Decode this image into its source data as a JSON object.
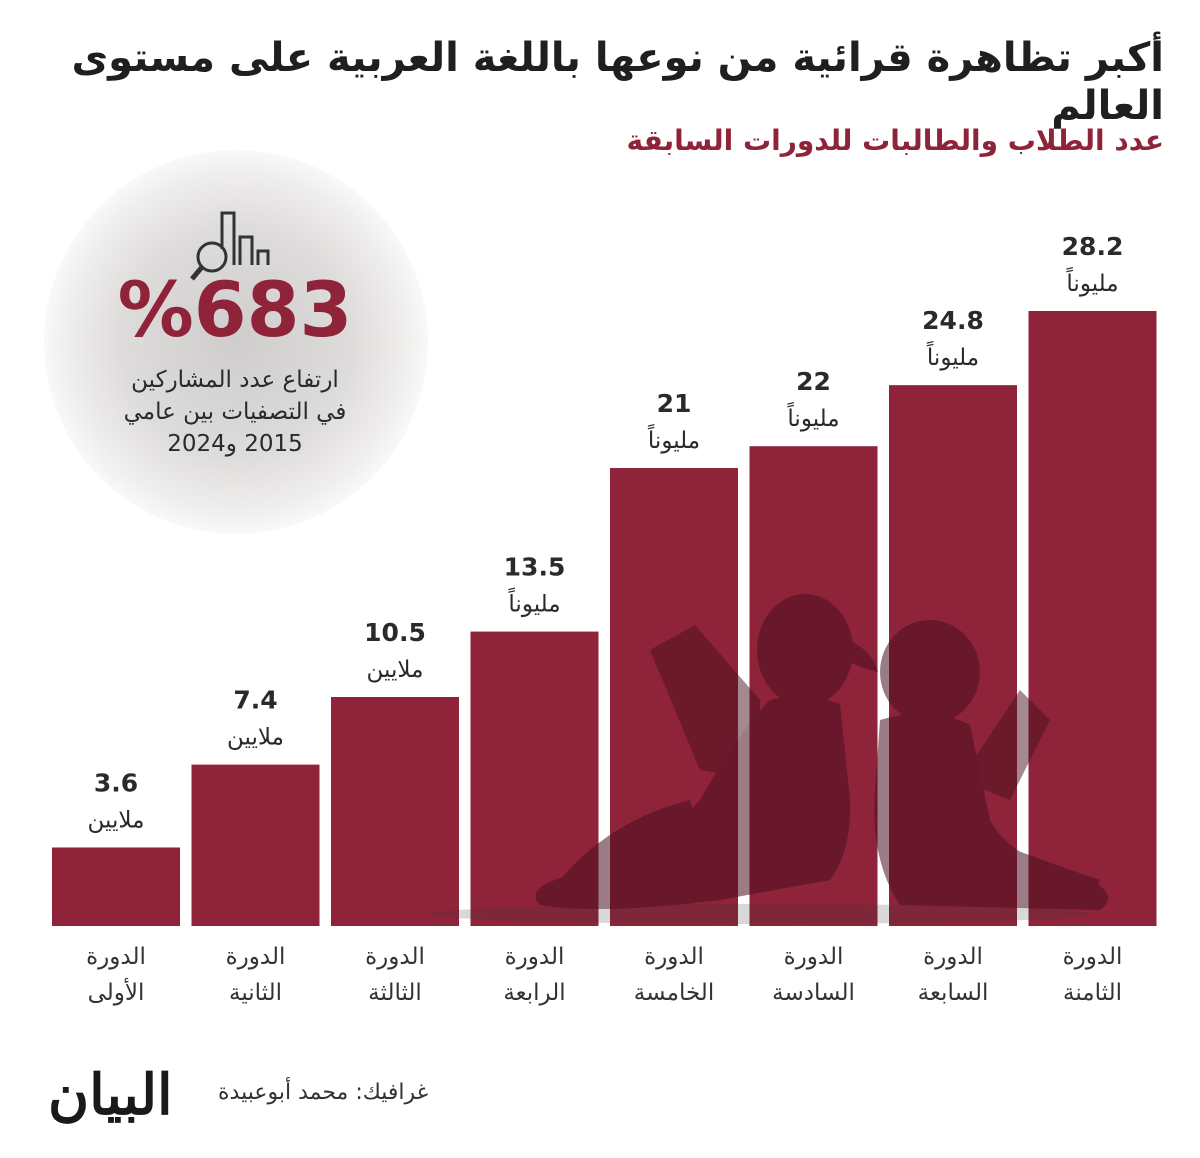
{
  "title": "أكبر تظاهرة قرائية من نوعها باللغة العربية على مستوى العالم",
  "subtitle": "عدد الطلاب والطالبات للدورات السابقة",
  "highlight": {
    "value": "%683",
    "caption_lines": [
      "ارتفاع عدد المشاركين",
      "في التصفيات بين عامي",
      "2015 و2024"
    ],
    "icon": "bar-chart-magnifier-icon"
  },
  "chart_data": {
    "type": "bar",
    "orientation": "vertical",
    "direction": "ltr",
    "categories": [
      [
        "الدورة",
        "الأولى"
      ],
      [
        "الدورة",
        "الثانية"
      ],
      [
        "الدورة",
        "الثالثة"
      ],
      [
        "الدورة",
        "الرابعة"
      ],
      [
        "الدورة",
        "الخامسة"
      ],
      [
        "الدورة",
        "السادسة"
      ],
      [
        "الدورة",
        "السابعة"
      ],
      [
        "الدورة",
        "الثامنة"
      ]
    ],
    "values": [
      3.6,
      7.4,
      10.5,
      13.5,
      21,
      22,
      24.8,
      28.2
    ],
    "value_labels": [
      "3.6",
      "7.4",
      "10.5",
      "13.5",
      "21",
      "22",
      "24.8",
      "28.2"
    ],
    "unit_labels": [
      "ملايين",
      "ملايين",
      "ملايين",
      "مليوناً",
      "مليوناً",
      "مليوناً",
      "مليوناً",
      "مليوناً"
    ],
    "ylim": [
      0,
      28.2
    ],
    "grid": false,
    "legend": "none",
    "bar_color": "#8e2339",
    "illustration": "children-reading-silhouette"
  },
  "footer": {
    "credit": "غرافيك: محمد أبوعبيدة",
    "logo": "البيان"
  }
}
